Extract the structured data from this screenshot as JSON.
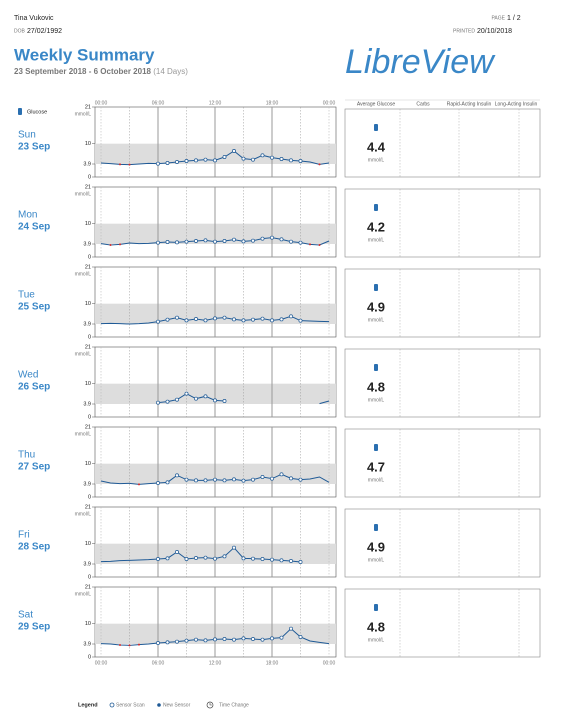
{
  "header": {
    "patient": "Tina Vukovic",
    "dob_label": "DOB",
    "dob": "27/02/1992",
    "page_label": "PAGE",
    "page": "1 / 2",
    "printed_label": "PRINTED",
    "printed": "20/10/2018",
    "title": "Weekly Summary",
    "date_range": "23 September 2018 - 6 October 2018",
    "days_note": "(14 Days)",
    "logo": "LibreView"
  },
  "columns": {
    "glucose": "Glucose",
    "average": "Average Glucose",
    "carbs": "Carbs",
    "rapid": "Rapid-Acting Insulin",
    "long": "Long-Acting Insulin"
  },
  "axis": {
    "unit": "mmol/L",
    "ylim": [
      0,
      21
    ],
    "yticks": [
      0,
      3.9,
      10,
      21
    ],
    "target": [
      3.9,
      10
    ],
    "xlim": [
      0,
      24
    ],
    "xticks": [
      {
        "value": 0,
        "label": "00:00"
      },
      {
        "value": 6,
        "label": "06:00"
      },
      {
        "value": 12,
        "label": "12:00"
      },
      {
        "value": 18,
        "label": "18:00"
      },
      {
        "value": 24,
        "label": "00:00"
      }
    ]
  },
  "days": [
    {
      "day": "Sun",
      "date": "23 Sep",
      "average": 4.4,
      "glucose": [
        4.2,
        4.0,
        3.8,
        3.7,
        3.9,
        4.1,
        4.0,
        4.2,
        4.5,
        4.8,
        5.0,
        5.2,
        5.0,
        6.0,
        7.8,
        5.5,
        5.2,
        6.5,
        5.8,
        5.4,
        5.0,
        4.8,
        4.5,
        3.8,
        4.2
      ]
    },
    {
      "day": "Mon",
      "date": "24 Sep",
      "average": 4.2,
      "glucose": [
        4.0,
        3.6,
        3.8,
        4.2,
        4.0,
        4.1,
        4.3,
        4.5,
        4.4,
        4.6,
        4.8,
        5.0,
        4.6,
        4.8,
        5.2,
        4.7,
        4.9,
        5.5,
        5.8,
        5.3,
        4.6,
        4.3,
        3.8,
        3.6,
        4.8
      ]
    },
    {
      "day": "Tue",
      "date": "25 Sep",
      "average": 4.9,
      "glucose": [
        4.0,
        4.1,
        4.0,
        3.9,
        4.0,
        4.2,
        4.6,
        5.2,
        5.8,
        5.0,
        5.4,
        5.0,
        5.6,
        5.8,
        5.3,
        5.0,
        5.2,
        5.5,
        5.0,
        5.3,
        6.2,
        4.9,
        4.8,
        4.7,
        4.6
      ]
    },
    {
      "day": "Wed",
      "date": "26 Sep",
      "average": 4.8,
      "glucose": [
        null,
        null,
        null,
        null,
        null,
        null,
        4.3,
        4.6,
        5.2,
        7.0,
        5.5,
        6.2,
        5.0,
        4.8,
        null,
        null,
        null,
        null,
        null,
        null,
        null,
        null,
        null,
        4.0,
        4.8
      ]
    },
    {
      "day": "Thu",
      "date": "27 Sep",
      "average": 4.7,
      "glucose": [
        4.8,
        4.2,
        4.0,
        4.1,
        3.8,
        4.0,
        4.2,
        4.4,
        6.5,
        5.2,
        5.0,
        5.0,
        5.2,
        5.0,
        5.3,
        4.9,
        5.2,
        6.0,
        5.5,
        6.8,
        5.6,
        5.2,
        5.4,
        6.0,
        4.4
      ]
    },
    {
      "day": "Fri",
      "date": "28 Sep",
      "average": 4.9,
      "glucose": [
        4.6,
        4.7,
        4.9,
        5.0,
        5.1,
        5.2,
        5.4,
        5.6,
        7.5,
        5.4,
        5.7,
        5.8,
        5.5,
        6.2,
        8.8,
        5.6,
        5.5,
        5.4,
        5.2,
        5.0,
        4.8,
        4.5,
        null,
        null,
        null
      ]
    },
    {
      "day": "Sat",
      "date": "29 Sep",
      "average": 4.8,
      "glucose": [
        4.0,
        3.9,
        3.6,
        3.5,
        3.7,
        3.9,
        4.2,
        4.4,
        4.6,
        4.9,
        5.2,
        5.0,
        5.3,
        5.4,
        5.2,
        5.6,
        5.4,
        5.2,
        5.6,
        5.8,
        8.5,
        6.0,
        4.8,
        4.4,
        4.0
      ]
    }
  ],
  "legend": {
    "title": "Legend",
    "scan": "Sensor Scan",
    "sensor": "New Sensor",
    "time_change": "Time Change"
  }
}
